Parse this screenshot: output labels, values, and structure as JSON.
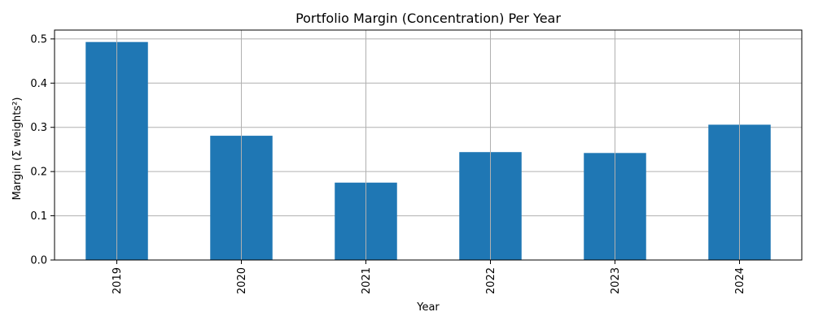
{
  "chart_data": {
    "type": "bar",
    "title": "Portfolio Margin (Concentration) Per Year",
    "xlabel": "Year",
    "ylabel": "Margin (Σ weights²)",
    "categories": [
      "2019",
      "2020",
      "2021",
      "2022",
      "2023",
      "2024"
    ],
    "values": [
      0.493,
      0.281,
      0.175,
      0.244,
      0.242,
      0.306
    ],
    "ylim": [
      0,
      0.52
    ],
    "yticks": [
      0.0,
      0.1,
      0.2,
      0.3,
      0.4,
      0.5
    ],
    "ytick_labels": [
      "0.0",
      "0.1",
      "0.2",
      "0.3",
      "0.4",
      "0.5"
    ],
    "grid": true,
    "legend": "none",
    "bar_color": "#1f77b4",
    "grid_color": "#b0b0b0"
  }
}
